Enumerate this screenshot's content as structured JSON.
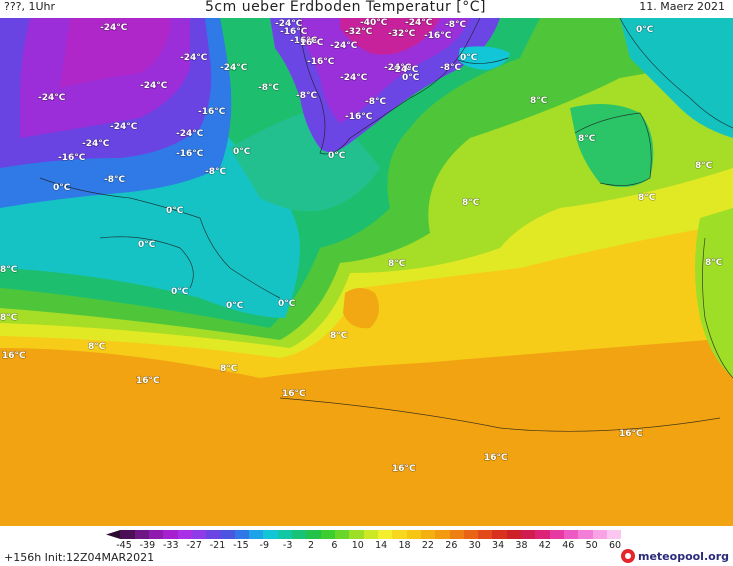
{
  "header": {
    "left": "???, 1Uhr",
    "title": "5cm ueber Erdboden Temperatur [°C]",
    "date": "11. Maerz 2021"
  },
  "footer": {
    "run": "+156h  Init:12Z04MAR2021",
    "brand": "meteopool.org"
  },
  "legend": {
    "tick_labels": [
      "-45",
      "-39",
      "-33",
      "-27",
      "-21",
      "-15",
      "-9",
      "-3",
      "2",
      "6",
      "10",
      "14",
      "18",
      "22",
      "26",
      "30",
      "34",
      "38",
      "42",
      "46",
      "50",
      "60"
    ],
    "colors": [
      "#2a0a2e",
      "#4b0f55",
      "#6e1683",
      "#8e1bae",
      "#a720cf",
      "#a930e6",
      "#8f3ce8",
      "#6b44e4",
      "#4a56e0",
      "#2f78e6",
      "#1fa3e8",
      "#12c6d8",
      "#12c7a4",
      "#18c277",
      "#22c24b",
      "#3ccd2e",
      "#6ad62a",
      "#9ede27",
      "#cde926",
      "#f3ef2e",
      "#f8d81f",
      "#f7c514",
      "#f4b010",
      "#f29a10",
      "#ee7f12",
      "#ea6415",
      "#e34a1a",
      "#d8321f",
      "#cc2227",
      "#d11c4f",
      "#dc2377",
      "#e63aa2",
      "#ee5ac3",
      "#f37ed8",
      "#f7a3e6",
      "#fbc7f1"
    ]
  },
  "map_labels": [
    "-24°C",
    "-24°C",
    "-24°C",
    "-24°C",
    "-16°C",
    "-16°C",
    "-24°C",
    "-24°C",
    "-40°C",
    "-24°C",
    "-8°C",
    "-16°C",
    "-32°C",
    "-32°C",
    "-16°C",
    "-24°C",
    "-16°C",
    "-24°C",
    "-24°C",
    "-8°C",
    "0°C",
    "-8°C",
    "0°C",
    "0°C",
    "-24°C",
    "-24°C",
    "-8°C",
    "-8°C",
    "-16°C",
    "-24°C",
    "-24°C",
    "-16°C",
    "-16°C",
    "-8°C",
    "0°C",
    "-16°C",
    "0°C",
    "-8°C",
    "0°C",
    "8°C",
    "8°C",
    "8°C",
    "8°C",
    "8°C",
    "0°C",
    "0°C",
    "0°C",
    "0°C",
    "0°C",
    "8°C",
    "8°C",
    "8°C",
    "8°C",
    "16°C",
    "8°C",
    "8°C",
    "16°C",
    "16°C",
    "8°C",
    "16°C",
    "16°C",
    "16°C"
  ]
}
